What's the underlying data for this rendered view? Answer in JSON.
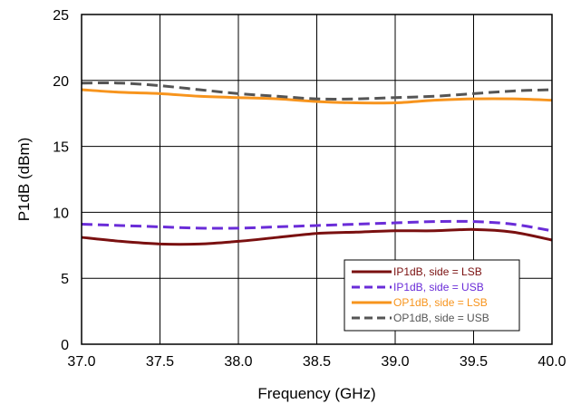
{
  "chart_data": {
    "type": "line",
    "xlabel": "Frequency (GHz)",
    "ylabel": "P1dB (dBm)",
    "xlim": [
      37.0,
      40.0
    ],
    "ylim": [
      0,
      25
    ],
    "xticks": [
      37.0,
      37.5,
      38.0,
      38.5,
      39.0,
      39.5,
      40.0
    ],
    "xtick_labels": [
      "37.0",
      "37.5",
      "38.0",
      "38.5",
      "39.0",
      "39.5",
      "40.0"
    ],
    "yticks": [
      0,
      5,
      10,
      15,
      20,
      25
    ],
    "ytick_labels": [
      "0",
      "5",
      "10",
      "15",
      "20",
      "25"
    ],
    "grid": true,
    "legend_position": "bottom-right",
    "series": [
      {
        "name": "IP1dB, side = LSB",
        "color": "#7a1010",
        "dash": "solid",
        "x": [
          37.0,
          37.25,
          37.5,
          37.75,
          38.0,
          38.25,
          38.5,
          38.75,
          39.0,
          39.25,
          39.5,
          39.75,
          40.0
        ],
        "y": [
          8.1,
          7.8,
          7.6,
          7.6,
          7.8,
          8.1,
          8.4,
          8.5,
          8.6,
          8.6,
          8.7,
          8.5,
          7.9
        ]
      },
      {
        "name": "IP1dB, side = USB",
        "color": "#6a2cd8",
        "dash": "dashed",
        "x": [
          37.0,
          37.25,
          37.5,
          37.75,
          38.0,
          38.25,
          38.5,
          38.75,
          39.0,
          39.25,
          39.5,
          39.75,
          40.0
        ],
        "y": [
          9.1,
          9.0,
          8.9,
          8.8,
          8.8,
          8.9,
          9.0,
          9.1,
          9.2,
          9.3,
          9.3,
          9.1,
          8.6
        ]
      },
      {
        "name": "OP1dB, side = LSB",
        "color": "#f7941d",
        "dash": "solid",
        "x": [
          37.0,
          37.25,
          37.5,
          37.75,
          38.0,
          38.25,
          38.5,
          38.75,
          39.0,
          39.25,
          39.5,
          39.75,
          40.0
        ],
        "y": [
          19.3,
          19.1,
          19.0,
          18.8,
          18.7,
          18.6,
          18.4,
          18.3,
          18.3,
          18.5,
          18.6,
          18.6,
          18.5
        ]
      },
      {
        "name": "OP1dB, side = USB",
        "color": "#555555",
        "dash": "dashed",
        "x": [
          37.0,
          37.25,
          37.5,
          37.75,
          38.0,
          38.25,
          38.5,
          38.75,
          39.0,
          39.25,
          39.5,
          39.75,
          40.0
        ],
        "y": [
          19.8,
          19.8,
          19.6,
          19.3,
          19.0,
          18.8,
          18.6,
          18.6,
          18.7,
          18.8,
          19.0,
          19.2,
          19.3
        ]
      }
    ]
  }
}
